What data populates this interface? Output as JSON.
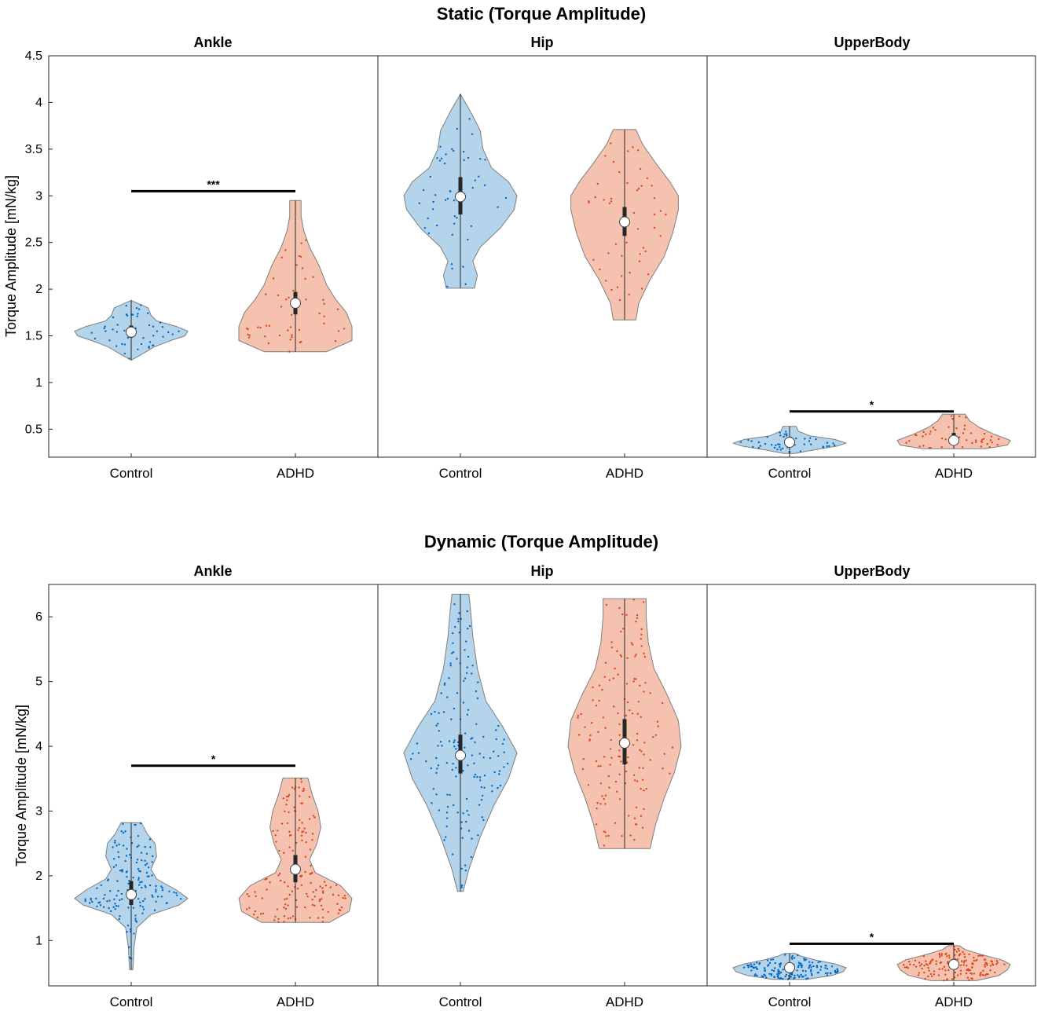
{
  "chart_data": [
    {
      "type": "violin",
      "title": "Static (Torque Amplitude)",
      "ylabel": "Torque Amplitude [mN/kg]",
      "ylim": [
        0.2,
        4.5
      ],
      "yticks": [
        0.5,
        1,
        1.5,
        2,
        2.5,
        3,
        3.5,
        4,
        4.5
      ],
      "ytick_labels": [
        "0.5",
        "1",
        "1.5",
        "2",
        "2.5",
        "3",
        "3.5",
        "4",
        "4.5"
      ],
      "categories": [
        "Control",
        "ADHD"
      ],
      "colors": {
        "Control": {
          "fill": "#b3d4ea",
          "dot": "#0066c6"
        },
        "ADHD": {
          "fill": "#f5c2b0",
          "dot": "#d9471a"
        }
      },
      "panels": [
        {
          "title": "Ankle",
          "groups": [
            {
              "name": "Control",
              "n": 50,
              "median": 1.54,
              "q1": 1.48,
              "q3": 1.61,
              "min": 1.24,
              "max": 1.88,
              "profile": [
                [
                  1.24,
                  0.0
                ],
                [
                  1.3,
                  0.18
                ],
                [
                  1.38,
                  0.4
                ],
                [
                  1.45,
                  0.7
                ],
                [
                  1.5,
                  0.95
                ],
                [
                  1.55,
                  1.0
                ],
                [
                  1.6,
                  0.8
                ],
                [
                  1.66,
                  0.45
                ],
                [
                  1.72,
                  0.35
                ],
                [
                  1.8,
                  0.3
                ],
                [
                  1.88,
                  0.0
                ]
              ]
            },
            {
              "name": "ADHD",
              "n": 50,
              "median": 1.85,
              "q1": 1.73,
              "q3": 1.97,
              "min": 1.33,
              "max": 2.95,
              "profile": [
                [
                  1.33,
                  0.55
                ],
                [
                  1.45,
                  1.0
                ],
                [
                  1.6,
                  1.0
                ],
                [
                  1.75,
                  0.9
                ],
                [
                  1.9,
                  0.7
                ],
                [
                  2.05,
                  0.55
                ],
                [
                  2.25,
                  0.42
                ],
                [
                  2.45,
                  0.25
                ],
                [
                  2.62,
                  0.15
                ],
                [
                  2.78,
                  0.1
                ],
                [
                  2.95,
                  0.1
                ]
              ]
            }
          ],
          "significance": {
            "label": "***",
            "y": 3.05
          }
        },
        {
          "title": "Hip",
          "groups": [
            {
              "name": "Control",
              "n": 50,
              "median": 2.99,
              "q1": 2.8,
              "q3": 3.2,
              "min": 2.01,
              "max": 4.09,
              "profile": [
                [
                  2.01,
                  0.25
                ],
                [
                  2.15,
                  0.3
                ],
                [
                  2.3,
                  0.22
                ],
                [
                  2.45,
                  0.35
                ],
                [
                  2.65,
                  0.7
                ],
                [
                  2.85,
                  0.95
                ],
                [
                  3.0,
                  1.0
                ],
                [
                  3.15,
                  0.85
                ],
                [
                  3.3,
                  0.55
                ],
                [
                  3.5,
                  0.4
                ],
                [
                  3.7,
                  0.35
                ],
                [
                  3.9,
                  0.18
                ],
                [
                  4.09,
                  0.0
                ]
              ]
            },
            {
              "name": "ADHD",
              "n": 50,
              "median": 2.72,
              "q1": 2.57,
              "q3": 2.88,
              "min": 1.67,
              "max": 3.71,
              "profile": [
                [
                  1.67,
                  0.2
                ],
                [
                  1.85,
                  0.25
                ],
                [
                  2.1,
                  0.45
                ],
                [
                  2.35,
                  0.7
                ],
                [
                  2.6,
                  0.85
                ],
                [
                  2.85,
                  0.95
                ],
                [
                  3.0,
                  0.95
                ],
                [
                  3.15,
                  0.8
                ],
                [
                  3.35,
                  0.55
                ],
                [
                  3.55,
                  0.32
                ],
                [
                  3.71,
                  0.2
                ]
              ]
            }
          ]
        },
        {
          "title": "UpperBody",
          "groups": [
            {
              "name": "Control",
              "n": 50,
              "median": 0.36,
              "q1": 0.32,
              "q3": 0.4,
              "min": 0.24,
              "max": 0.53,
              "profile": [
                [
                  0.24,
                  0.1
                ],
                [
                  0.28,
                  0.45
                ],
                [
                  0.32,
                  0.85
                ],
                [
                  0.35,
                  1.0
                ],
                [
                  0.39,
                  0.8
                ],
                [
                  0.43,
                  0.35
                ],
                [
                  0.48,
                  0.15
                ],
                [
                  0.53,
                  0.12
                ]
              ]
            },
            {
              "name": "ADHD",
              "n": 50,
              "median": 0.38,
              "q1": 0.34,
              "q3": 0.46,
              "min": 0.29,
              "max": 0.66,
              "profile": [
                [
                  0.29,
                  0.55
                ],
                [
                  0.33,
                  0.95
                ],
                [
                  0.38,
                  1.0
                ],
                [
                  0.45,
                  0.7
                ],
                [
                  0.52,
                  0.45
                ],
                [
                  0.59,
                  0.28
                ],
                [
                  0.66,
                  0.2
                ]
              ]
            }
          ],
          "significance": {
            "label": "*",
            "y": 0.69
          }
        }
      ]
    },
    {
      "type": "violin",
      "title": "Dynamic (Torque Amplitude)",
      "ylabel": "Torque Amplitude [mN/kg]",
      "ylim": [
        0.3,
        6.5
      ],
      "yticks": [
        1,
        2,
        3,
        4,
        5,
        6
      ],
      "ytick_labels": [
        "1",
        "2",
        "3",
        "4",
        "5",
        "6"
      ],
      "categories": [
        "Control",
        "ADHD"
      ],
      "colors": {
        "Control": {
          "fill": "#b3d4ea",
          "dot": "#0066c6"
        },
        "ADHD": {
          "fill": "#f5c2b0",
          "dot": "#d9471a"
        }
      },
      "panels": [
        {
          "title": "Ankle",
          "groups": [
            {
              "name": "Control",
              "n": 150,
              "median": 1.71,
              "q1": 1.55,
              "q3": 1.92,
              "min": 0.55,
              "max": 2.82,
              "profile": [
                [
                  0.55,
                  0.03
                ],
                [
                  0.9,
                  0.05
                ],
                [
                  1.2,
                  0.1
                ],
                [
                  1.4,
                  0.35
                ],
                [
                  1.55,
                  0.85
                ],
                [
                  1.65,
                  1.0
                ],
                [
                  1.78,
                  0.8
                ],
                [
                  1.95,
                  0.45
                ],
                [
                  2.1,
                  0.35
                ],
                [
                  2.3,
                  0.45
                ],
                [
                  2.5,
                  0.42
                ],
                [
                  2.65,
                  0.28
                ],
                [
                  2.82,
                  0.18
                ]
              ]
            },
            {
              "name": "ADHD",
              "n": 150,
              "median": 2.1,
              "q1": 1.9,
              "q3": 2.32,
              "min": 1.28,
              "max": 3.51,
              "profile": [
                [
                  1.28,
                  0.6
                ],
                [
                  1.45,
                  0.95
                ],
                [
                  1.65,
                  1.0
                ],
                [
                  1.85,
                  0.8
                ],
                [
                  2.05,
                  0.35
                ],
                [
                  2.25,
                  0.25
                ],
                [
                  2.5,
                  0.38
                ],
                [
                  2.75,
                  0.45
                ],
                [
                  3.0,
                  0.4
                ],
                [
                  3.25,
                  0.3
                ],
                [
                  3.51,
                  0.22
                ]
              ]
            }
          ],
          "significance": {
            "label": "*",
            "y": 3.7
          }
        },
        {
          "title": "Hip",
          "groups": [
            {
              "name": "Control",
              "n": 150,
              "median": 3.86,
              "q1": 3.58,
              "q3": 4.18,
              "min": 1.76,
              "max": 6.35,
              "profile": [
                [
                  1.76,
                  0.05
                ],
                [
                  2.1,
                  0.15
                ],
                [
                  2.6,
                  0.35
                ],
                [
                  3.1,
                  0.6
                ],
                [
                  3.5,
                  0.85
                ],
                [
                  3.9,
                  1.0
                ],
                [
                  4.3,
                  0.75
                ],
                [
                  4.7,
                  0.45
                ],
                [
                  5.2,
                  0.3
                ],
                [
                  5.7,
                  0.22
                ],
                [
                  6.1,
                  0.18
                ],
                [
                  6.35,
                  0.15
                ]
              ]
            },
            {
              "name": "ADHD",
              "n": 150,
              "median": 4.05,
              "q1": 3.72,
              "q3": 4.42,
              "min": 2.42,
              "max": 6.28,
              "profile": [
                [
                  2.42,
                  0.45
                ],
                [
                  2.8,
                  0.55
                ],
                [
                  3.2,
                  0.7
                ],
                [
                  3.6,
                  0.88
                ],
                [
                  4.0,
                  1.0
                ],
                [
                  4.4,
                  0.95
                ],
                [
                  4.8,
                  0.75
                ],
                [
                  5.2,
                  0.52
                ],
                [
                  5.6,
                  0.42
                ],
                [
                  6.0,
                  0.38
                ],
                [
                  6.28,
                  0.38
                ]
              ]
            }
          ]
        },
        {
          "title": "UpperBody",
          "groups": [
            {
              "name": "Control",
              "n": 150,
              "median": 0.58,
              "q1": 0.52,
              "q3": 0.64,
              "min": 0.4,
              "max": 0.8,
              "profile": [
                [
                  0.4,
                  0.3
                ],
                [
                  0.46,
                  0.75
                ],
                [
                  0.52,
                  0.95
                ],
                [
                  0.58,
                  1.0
                ],
                [
                  0.64,
                  0.8
                ],
                [
                  0.7,
                  0.45
                ],
                [
                  0.76,
                  0.2
                ],
                [
                  0.8,
                  0.1
                ]
              ]
            },
            {
              "name": "ADHD",
              "n": 150,
              "median": 0.63,
              "q1": 0.56,
              "q3": 0.69,
              "min": 0.38,
              "max": 0.92,
              "profile": [
                [
                  0.38,
                  0.4
                ],
                [
                  0.46,
                  0.8
                ],
                [
                  0.55,
                  0.95
                ],
                [
                  0.63,
                  1.0
                ],
                [
                  0.7,
                  0.85
                ],
                [
                  0.78,
                  0.5
                ],
                [
                  0.86,
                  0.2
                ],
                [
                  0.92,
                  0.1
                ]
              ]
            }
          ],
          "significance": {
            "label": "*",
            "y": 0.95
          }
        }
      ]
    }
  ]
}
